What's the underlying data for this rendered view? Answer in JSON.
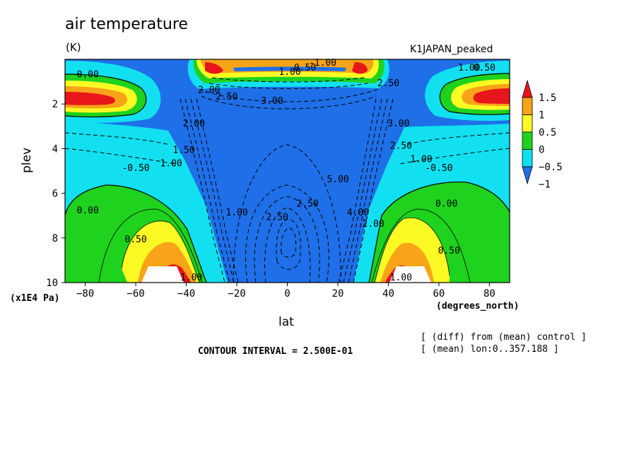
{
  "header": {
    "title": "air temperature",
    "units": "(K)",
    "experiment": "K1JAPAN_peaked"
  },
  "notes": {
    "contour_interval": "CONTOUR INTERVAL = 2.500E-01",
    "diff_note": "[ (diff) from (mean) control ]",
    "mean_note": "[ (mean) lon:0..357.188 ]"
  },
  "chart_data": {
    "type": "heatmap",
    "title": "air temperature",
    "units": "(K)",
    "xlabel": "lat",
    "xunits": "(degrees_north)",
    "ylabel": "plev",
    "yunits": "(x1E4 Pa)",
    "xlim": [
      -88,
      88
    ],
    "ylim": [
      0,
      10
    ],
    "y_inverted": true,
    "xticks": [
      -80,
      -60,
      -40,
      -20,
      0,
      20,
      40,
      60,
      80
    ],
    "yticks": [
      2,
      4,
      6,
      8,
      10
    ],
    "colorbar": {
      "ticks": [
        "1.5",
        "1",
        "0.5",
        "0",
        "−0.5",
        "−1"
      ],
      "levels": [
        -1,
        -0.5,
        0,
        0.5,
        1,
        1.5
      ],
      "colors": [
        "#1f6fe8",
        "#12e0f0",
        "#1ed21e",
        "#fcfa24",
        "#f7a418",
        "#e8161a"
      ],
      "extends": "both"
    },
    "contour_interval": 0.25,
    "contour_labels": [
      {
        "text": "0.00",
        "lat": -79,
        "plev": 0.8
      },
      {
        "text": "-1.00",
        "lat": 14,
        "plev": 0.0
      },
      {
        "text": "0.50",
        "lat": 7,
        "plev": 0.5
      },
      {
        "text": "1.00",
        "lat": 1,
        "plev": 0.7
      },
      {
        "text": "0.50",
        "lat": 78,
        "plev": 0.5
      },
      {
        "text": "1.00",
        "lat": 72,
        "plev": 0.5
      },
      {
        "text": "3.00",
        "lat": -6,
        "plev": 2.0
      },
      {
        "text": "2.50",
        "lat": -24,
        "plev": 1.8
      },
      {
        "text": "2.00",
        "lat": -31,
        "plev": 1.5
      },
      {
        "text": "2.50",
        "lat": 40,
        "plev": 1.2
      },
      {
        "text": "2.00",
        "lat": -37,
        "plev": 3.0
      },
      {
        "text": "1.50",
        "lat": -41,
        "plev": 4.2
      },
      {
        "text": "1.00",
        "lat": -46,
        "plev": 4.8
      },
      {
        "text": "-0.50",
        "lat": -60,
        "plev": 5.0
      },
      {
        "text": "0.00",
        "lat": -79,
        "plev": 6.9
      },
      {
        "text": "0.50",
        "lat": -60,
        "plev": 8.2
      },
      {
        "text": "1.00",
        "lat": -38,
        "plev": 10.0
      },
      {
        "text": "5.00",
        "lat": 20,
        "plev": 5.5
      },
      {
        "text": "2.50",
        "lat": -4,
        "plev": 7.2
      },
      {
        "text": "2.50",
        "lat": 8,
        "plev": 6.6
      },
      {
        "text": "1.00",
        "lat": -20,
        "plev": 7.0
      },
      {
        "text": "4.00",
        "lat": 28,
        "plev": 7.0
      },
      {
        "text": "2.00",
        "lat": 34,
        "plev": 7.5
      },
      {
        "text": "3.00",
        "lat": 44,
        "plev": 3.0
      },
      {
        "text": "2.50",
        "lat": 45,
        "plev": 4.0
      },
      {
        "text": "1.00",
        "lat": 53,
        "plev": 4.6
      },
      {
        "text": "-0.50",
        "lat": 60,
        "plev": 5.0
      },
      {
        "text": "0.00",
        "lat": 63,
        "plev": 6.6
      },
      {
        "text": "0.50",
        "lat": 64,
        "plev": 8.7
      },
      {
        "text": "1.00",
        "lat": 45,
        "plev": 10.0
      }
    ]
  },
  "icons": {
    "colorbar_top": "triangle-up-icon",
    "colorbar_bottom": "triangle-down-icon"
  }
}
